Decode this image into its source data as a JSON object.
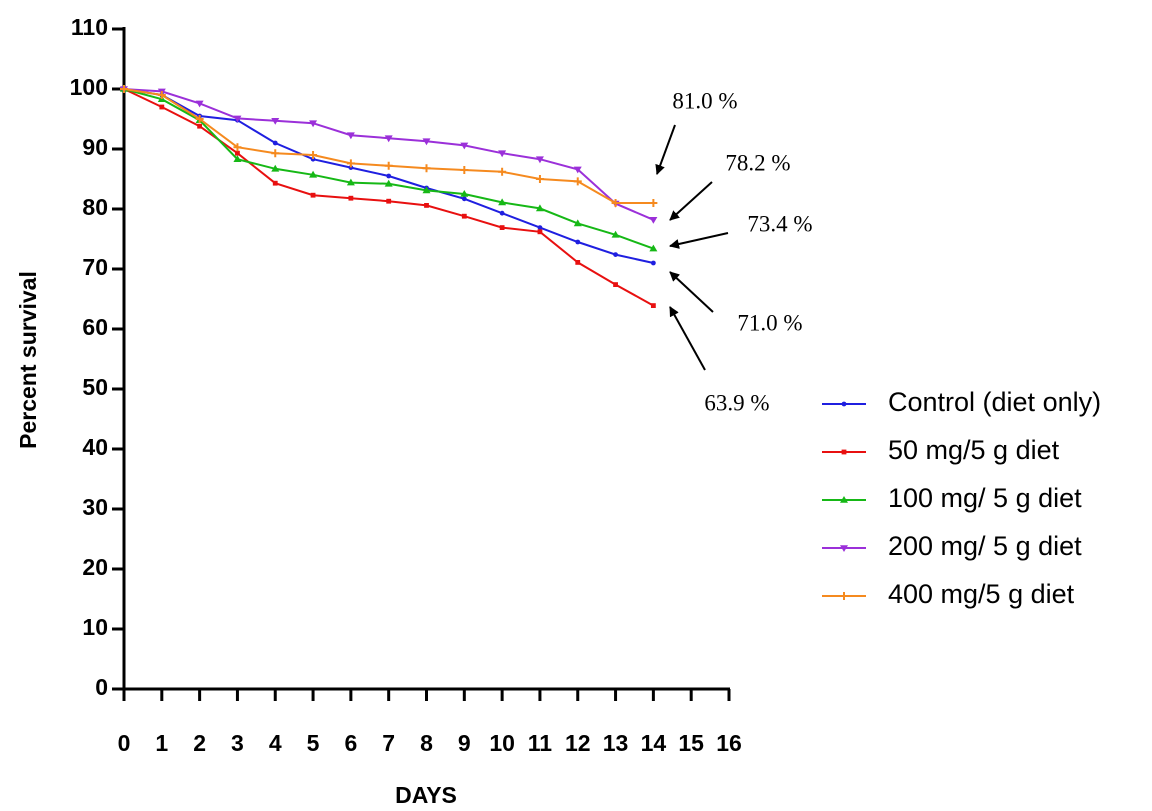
{
  "chart_data": {
    "type": "line",
    "x_label": "DAYS",
    "y_label": "Percent survival",
    "x": [
      0,
      1,
      2,
      3,
      4,
      5,
      6,
      7,
      8,
      9,
      10,
      11,
      12,
      13,
      14
    ],
    "xlim": [
      0,
      16
    ],
    "xticks": [
      0,
      1,
      2,
      3,
      4,
      5,
      6,
      7,
      8,
      9,
      10,
      11,
      12,
      13,
      14,
      15,
      16
    ],
    "ylim": [
      0,
      110
    ],
    "yticks": [
      0,
      10,
      20,
      30,
      40,
      50,
      60,
      70,
      80,
      90,
      100,
      110
    ],
    "series": [
      {
        "name": "Control (diet only)",
        "color": "#1f1fe0",
        "marker": "circle",
        "values": [
          100,
          99,
          95.5,
          94.8,
          91,
          88.3,
          86.9,
          85.5,
          83.5,
          81.7,
          79.3,
          76.9,
          74.5,
          72.4,
          71.0
        ]
      },
      {
        "name": "50 mg/5 g diet",
        "color": "#e81010",
        "marker": "square",
        "values": [
          100,
          97,
          93.8,
          89.3,
          84.3,
          82.3,
          81.8,
          81.3,
          80.6,
          78.8,
          76.9,
          76.2,
          71.1,
          67.4,
          63.9
        ]
      },
      {
        "name": "100 mg/ 5 g diet",
        "color": "#16b816",
        "marker": "triangle-up",
        "values": [
          100,
          98.3,
          94.8,
          88.3,
          86.7,
          85.7,
          84.4,
          84.2,
          83.1,
          82.5,
          81.1,
          80.1,
          77.6,
          75.7,
          73.4
        ]
      },
      {
        "name": "200 mg/ 5 g diet",
        "color": "#9b30d9",
        "marker": "triangle-down",
        "values": [
          100,
          99.6,
          97.6,
          95.1,
          94.7,
          94.3,
          92.3,
          91.8,
          91.3,
          90.6,
          89.3,
          88.3,
          86.6,
          80.9,
          78.2
        ]
      },
      {
        "name": "400 mg/5 g diet",
        "color": "#f58a1f",
        "marker": "plus",
        "values": [
          100,
          99,
          95,
          90.3,
          89.3,
          89.0,
          87.6,
          87.2,
          86.8,
          86.5,
          86.2,
          85.0,
          84.6,
          81.0,
          81.0
        ]
      }
    ],
    "annotations": [
      "81.0 %",
      "78.2 %",
      "73.4 %",
      "71.0 %",
      "63.9 %"
    ]
  }
}
